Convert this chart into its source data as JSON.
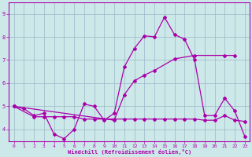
{
  "xlabel": "Windchill (Refroidissement éolien,°C)",
  "xlim": [
    -0.5,
    23.5
  ],
  "ylim": [
    3.5,
    9.5
  ],
  "xticks": [
    0,
    1,
    2,
    3,
    4,
    5,
    6,
    7,
    8,
    9,
    10,
    11,
    12,
    13,
    14,
    15,
    16,
    17,
    18,
    19,
    20,
    21,
    22,
    23
  ],
  "yticks": [
    4,
    5,
    6,
    7,
    8,
    9
  ],
  "bg_color": "#cce8e8",
  "line_color": "#aa00aa",
  "grid_color": "#9ab8c8",
  "series": {
    "jagged": {
      "x": [
        0,
        1,
        2,
        3,
        4,
        5,
        6,
        7,
        8,
        9,
        10,
        11,
        12,
        13,
        14,
        15,
        16,
        17,
        18,
        19,
        20,
        21,
        22,
        23
      ],
      "y": [
        5.0,
        4.9,
        4.6,
        4.7,
        3.8,
        3.6,
        4.0,
        5.1,
        5.0,
        4.4,
        4.7,
        6.7,
        7.5,
        8.05,
        8.0,
        8.85,
        8.1,
        7.9,
        7.0,
        4.6,
        4.6,
        5.35,
        4.8,
        3.7
      ]
    },
    "rising": {
      "x": [
        0,
        10,
        11,
        12,
        13,
        14,
        16,
        18,
        21,
        22
      ],
      "y": [
        5.0,
        4.4,
        5.5,
        6.1,
        6.35,
        6.55,
        7.05,
        7.2,
        7.2,
        7.2
      ]
    },
    "flat": {
      "x": [
        0,
        2,
        3,
        4,
        5,
        6,
        7,
        8,
        9,
        10,
        11,
        12,
        13,
        14,
        15,
        16,
        17,
        18,
        19,
        20,
        21,
        22,
        23
      ],
      "y": [
        5.0,
        4.55,
        4.55,
        4.55,
        4.55,
        4.55,
        4.45,
        4.45,
        4.45,
        4.45,
        4.45,
        4.45,
        4.45,
        4.45,
        4.45,
        4.45,
        4.45,
        4.45,
        4.4,
        4.4,
        4.6,
        4.4,
        4.35
      ]
    }
  }
}
